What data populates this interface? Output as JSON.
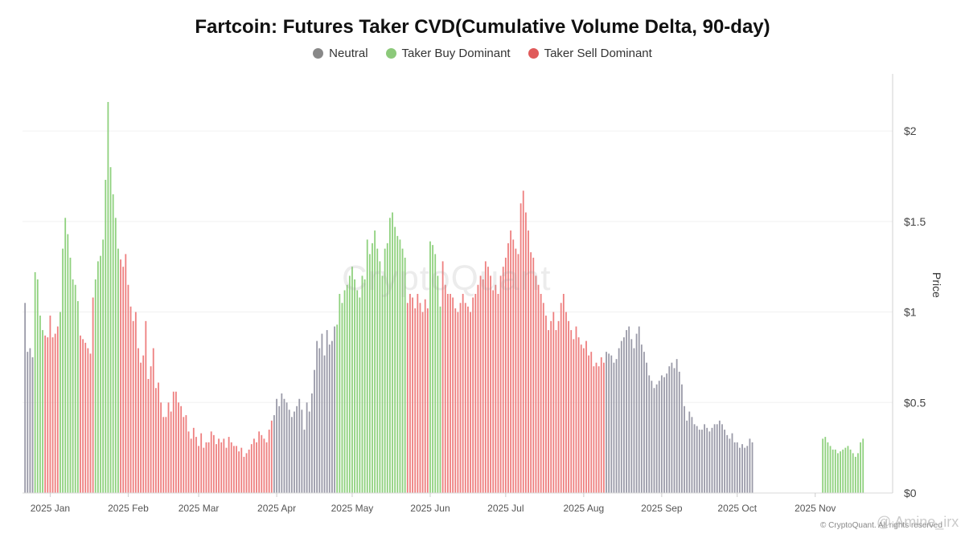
{
  "colors": {
    "neutral": "#9a9aa8",
    "buy": "#8fd17e",
    "sell": "#ee7f7f",
    "legend_neutral": "#888888",
    "legend_buy": "#8cc97a",
    "legend_sell": "#e05a5a"
  },
  "watermark": "CryptoQuant",
  "credit": "© CryptoQuant. All rights reserved",
  "handle": "@ Amine_irx",
  "chart_data": {
    "type": "bar",
    "title": "Fartcoin: Futures Taker CVD(Cumulative Volume Delta, 90-day)",
    "legend": [
      {
        "key": "neutral",
        "label": "Neutral"
      },
      {
        "key": "buy",
        "label": "Taker Buy Dominant"
      },
      {
        "key": "sell",
        "label": "Taker Sell Dominant"
      }
    ],
    "legend_position": "top-center",
    "y_axis": {
      "label": "Price",
      "position": "right",
      "ylim": [
        0,
        2.2
      ],
      "ticks": [
        0,
        0.5,
        1,
        1.5,
        2
      ],
      "tick_labels": [
        "$0",
        "$0.5",
        "$1",
        "$1.5",
        "$2"
      ]
    },
    "x_axis": {
      "start": "2024-12-21",
      "end": "2025-11-26",
      "ticks": [
        {
          "date": "2025-01-01",
          "label": "2025 Jan"
        },
        {
          "date": "2025-02-01",
          "label": "2025 Feb"
        },
        {
          "date": "2025-03-01",
          "label": "2025 Mar"
        },
        {
          "date": "2025-04-01",
          "label": "2025 Apr"
        },
        {
          "date": "2025-05-01",
          "label": "2025 May"
        },
        {
          "date": "2025-06-01",
          "label": "2025 Jun"
        },
        {
          "date": "2025-07-01",
          "label": "2025 Jul"
        },
        {
          "date": "2025-08-01",
          "label": "2025 Aug"
        },
        {
          "date": "2025-09-01",
          "label": "2025 Sep"
        },
        {
          "date": "2025-10-01",
          "label": "2025 Oct"
        },
        {
          "date": "2025-11-01",
          "label": "2025 Nov"
        }
      ]
    },
    "grid": true,
    "segments": [
      {
        "start": "2024-12-22",
        "state": "neutral",
        "values": [
          1.05,
          0.78,
          0.8,
          0.75
        ]
      },
      {
        "start": "2024-12-26",
        "state": "buy",
        "values": [
          1.22,
          1.18,
          0.98,
          0.9
        ]
      },
      {
        "start": "2024-12-30",
        "state": "sell",
        "values": [
          0.87,
          0.86,
          0.98,
          0.86,
          0.88,
          0.92
        ]
      },
      {
        "start": "2025-01-05",
        "state": "buy",
        "values": [
          1.0,
          1.35,
          1.52,
          1.43,
          1.3,
          1.18,
          1.15,
          1.06
        ]
      },
      {
        "start": "2025-01-13",
        "state": "sell",
        "values": [
          0.87,
          0.85,
          0.83,
          0.8,
          0.77,
          1.08
        ]
      },
      {
        "start": "2025-01-19",
        "state": "buy",
        "values": [
          1.18,
          1.28,
          1.31,
          1.4,
          1.73,
          2.16,
          1.8,
          1.65,
          1.52,
          1.35
        ]
      },
      {
        "start": "2025-01-29",
        "state": "sell",
        "values": [
          1.29,
          1.25,
          1.32,
          1.15,
          1.03,
          0.95,
          1.0,
          0.8,
          0.72,
          0.76,
          0.95,
          0.63,
          0.7,
          0.8,
          0.58,
          0.61,
          0.5,
          0.42,
          0.42,
          0.5,
          0.45,
          0.56,
          0.56,
          0.5,
          0.48,
          0.42,
          0.43,
          0.34,
          0.3,
          0.36,
          0.31,
          0.26,
          0.33,
          0.25,
          0.28,
          0.28,
          0.34,
          0.32,
          0.27,
          0.3,
          0.28,
          0.3,
          0.25,
          0.31,
          0.28,
          0.26,
          0.26,
          0.23,
          0.25,
          0.2,
          0.22,
          0.24,
          0.27,
          0.3,
          0.28,
          0.34,
          0.32,
          0.3,
          0.28,
          0.35,
          0.4
        ]
      },
      {
        "start": "2025-03-31",
        "state": "neutral",
        "values": [
          0.43,
          0.52,
          0.48,
          0.55,
          0.52,
          0.5,
          0.46,
          0.42,
          0.45,
          0.48,
          0.52,
          0.46,
          0.35,
          0.5,
          0.45,
          0.55
        ]
      },
      {
        "start": "2025-04-16",
        "state": "neutral",
        "values": [
          0.68,
          0.84,
          0.8,
          0.88,
          0.76,
          0.9,
          0.82,
          0.84,
          0.92
        ]
      },
      {
        "start": "2025-04-25",
        "state": "buy",
        "values": [
          0.93,
          1.1,
          1.05,
          1.12,
          1.15,
          1.2,
          1.25,
          1.18,
          1.12,
          1.08,
          1.2,
          1.18,
          1.4,
          1.32,
          1.38,
          1.45,
          1.35,
          1.28,
          1.2,
          1.35,
          1.38,
          1.52,
          1.55,
          1.47,
          1.42,
          1.4,
          1.35,
          1.3
        ]
      },
      {
        "start": "2025-05-23",
        "state": "sell",
        "values": [
          1.05,
          1.1,
          1.08,
          1.02,
          1.1,
          1.05,
          1.0,
          1.07,
          1.02
        ]
      },
      {
        "start": "2025-06-01",
        "state": "buy",
        "values": [
          1.39,
          1.37,
          1.32,
          1.2,
          1.03
        ]
      },
      {
        "start": "2025-06-06",
        "state": "sell",
        "values": [
          1.28,
          1.15,
          1.1,
          1.1,
          1.08,
          1.02,
          1.0,
          1.05,
          1.1,
          1.05,
          1.03,
          1.0,
          1.08,
          1.1,
          1.15,
          1.2,
          1.18,
          1.28,
          1.25,
          1.2,
          1.12,
          1.15,
          1.1,
          1.2,
          1.25,
          1.3,
          1.38,
          1.45,
          1.4,
          1.35,
          1.32,
          1.6,
          1.67,
          1.55,
          1.45,
          1.33,
          1.3,
          1.2,
          1.15,
          1.1,
          1.05,
          0.98,
          0.9,
          0.95,
          1.0,
          0.9,
          0.95,
          1.05,
          1.1,
          1.0,
          0.95,
          0.9,
          0.85,
          0.92,
          0.86,
          0.82,
          0.8,
          0.84,
          0.76,
          0.78,
          0.7,
          0.72,
          0.7,
          0.75,
          0.72
        ]
      },
      {
        "start": "2025-08-10",
        "state": "neutral",
        "values": [
          0.78,
          0.77,
          0.76,
          0.72,
          0.74,
          0.8,
          0.84,
          0.86,
          0.9,
          0.92,
          0.85,
          0.8,
          0.88,
          0.92,
          0.82,
          0.78,
          0.72,
          0.65,
          0.62,
          0.58,
          0.6,
          0.62,
          0.65,
          0.64,
          0.66,
          0.7,
          0.72,
          0.69,
          0.74,
          0.67,
          0.6,
          0.48,
          0.4,
          0.45,
          0.42,
          0.38,
          0.37,
          0.35,
          0.35,
          0.38,
          0.36,
          0.34,
          0.36,
          0.38,
          0.38,
          0.4,
          0.38,
          0.35,
          0.32,
          0.3,
          0.33,
          0.28,
          0.28,
          0.25,
          0.27,
          0.25,
          0.26,
          0.3,
          0.28
        ]
      },
      {
        "start": "2025-11-04",
        "state": "buy",
        "values": [
          0.3,
          0.31,
          0.28,
          0.26,
          0.24,
          0.24,
          0.22,
          0.23,
          0.24,
          0.25,
          0.26,
          0.24,
          0.22,
          0.2,
          0.22,
          0.28,
          0.3
        ]
      }
    ]
  }
}
